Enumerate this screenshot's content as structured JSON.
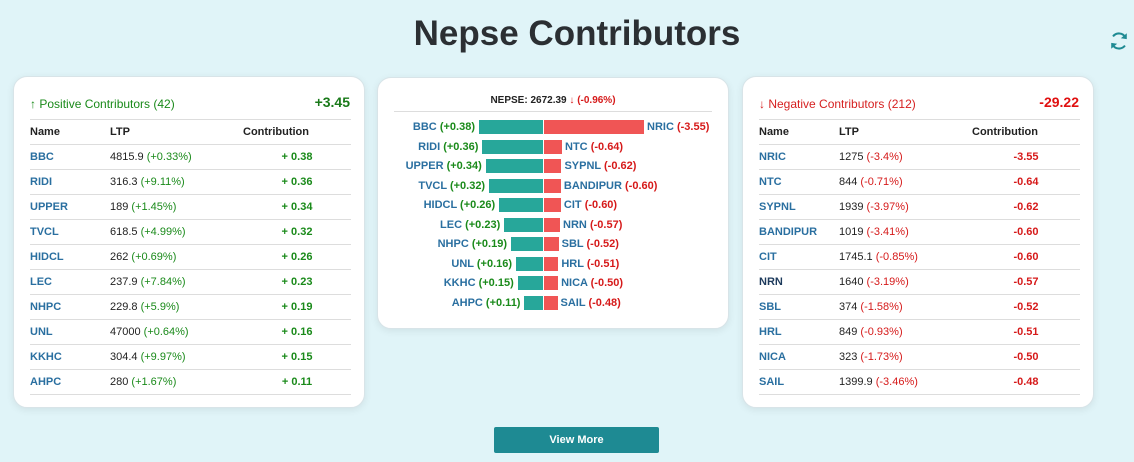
{
  "header": {
    "title": "Nepse Contributors"
  },
  "positive": {
    "arrow": "↑",
    "title": "Positive Contributors (42)",
    "total": "+3.45",
    "columns": [
      "Name",
      "LTP",
      "Contribution"
    ],
    "rows": [
      {
        "name": "BBC",
        "ltp": "4815.9",
        "chg": "(+0.33%)",
        "contrib": "+ 0.38"
      },
      {
        "name": "RIDI",
        "ltp": "316.3",
        "chg": "(+9.11%)",
        "contrib": "+ 0.36"
      },
      {
        "name": "UPPER",
        "ltp": "189",
        "chg": "(+1.45%)",
        "contrib": "+ 0.34"
      },
      {
        "name": "TVCL",
        "ltp": "618.5",
        "chg": "(+4.99%)",
        "contrib": "+ 0.32"
      },
      {
        "name": "HIDCL",
        "ltp": "262",
        "chg": "(+0.69%)",
        "contrib": "+ 0.26"
      },
      {
        "name": "LEC",
        "ltp": "237.9",
        "chg": "(+7.84%)",
        "contrib": "+ 0.23"
      },
      {
        "name": "NHPC",
        "ltp": "229.8",
        "chg": "(+5.9%)",
        "contrib": "+ 0.19"
      },
      {
        "name": "UNL",
        "ltp": "47000",
        "chg": "(+0.64%)",
        "contrib": "+ 0.16"
      },
      {
        "name": "KKHC",
        "ltp": "304.4",
        "chg": "(+9.97%)",
        "contrib": "+ 0.15"
      },
      {
        "name": "AHPC",
        "ltp": "280",
        "chg": "(+1.67%)",
        "contrib": "+ 0.11"
      }
    ]
  },
  "negative": {
    "arrow": "↓",
    "title": "Negative Contributors (212)",
    "total": "-29.22",
    "columns": [
      "Name",
      "LTP",
      "Contribution"
    ],
    "rows": [
      {
        "name": "NRIC",
        "ltp": "1275",
        "chg": "(-3.4%)",
        "contrib": "-3.55"
      },
      {
        "name": "NTC",
        "ltp": "844",
        "chg": "(-0.71%)",
        "contrib": "-0.64"
      },
      {
        "name": "SYPNL",
        "ltp": "1939",
        "chg": "(-3.97%)",
        "contrib": "-0.62"
      },
      {
        "name": "BANDIPUR",
        "ltp": "1019",
        "chg": "(-3.41%)",
        "contrib": "-0.60"
      },
      {
        "name": "CIT",
        "ltp": "1745.1",
        "chg": "(-0.85%)",
        "contrib": "-0.60"
      },
      {
        "name": "NRN",
        "ltp": "1640",
        "chg": "(-3.19%)",
        "contrib": "-0.57"
      },
      {
        "name": "SBL",
        "ltp": "374",
        "chg": "(-1.58%)",
        "contrib": "-0.52"
      },
      {
        "name": "HRL",
        "ltp": "849",
        "chg": "(-0.93%)",
        "contrib": "-0.51"
      },
      {
        "name": "NICA",
        "ltp": "323",
        "chg": "(-1.73%)",
        "contrib": "-0.50"
      },
      {
        "name": "SAIL",
        "ltp": "1399.9",
        "chg": "(-3.46%)",
        "contrib": "-0.48"
      }
    ]
  },
  "index": {
    "label": "NEPSE: 2672.39",
    "arrow": "↓",
    "change": "(-0.96%)"
  },
  "bars": {
    "positive": [
      {
        "name": "BBC",
        "value": 0.38,
        "text": "(+0.38)"
      },
      {
        "name": "RIDI",
        "value": 0.36,
        "text": "(+0.36)"
      },
      {
        "name": "UPPER",
        "value": 0.34,
        "text": "(+0.34)"
      },
      {
        "name": "TVCL",
        "value": 0.32,
        "text": "(+0.32)"
      },
      {
        "name": "HIDCL",
        "value": 0.26,
        "text": "(+0.26)"
      },
      {
        "name": "LEC",
        "value": 0.23,
        "text": "(+0.23)"
      },
      {
        "name": "NHPC",
        "value": 0.19,
        "text": "(+0.19)"
      },
      {
        "name": "UNL",
        "value": 0.16,
        "text": "(+0.16)"
      },
      {
        "name": "KKHC",
        "value": 0.15,
        "text": "(+0.15)"
      },
      {
        "name": "AHPC",
        "value": 0.11,
        "text": "(+0.11)"
      }
    ],
    "negative": [
      {
        "name": "NRIC",
        "value": 3.55,
        "text": "(-3.55)"
      },
      {
        "name": "NTC",
        "value": 0.64,
        "text": "(-0.64)"
      },
      {
        "name": "SYPNL",
        "value": 0.62,
        "text": "(-0.62)"
      },
      {
        "name": "BANDIPUR",
        "value": 0.6,
        "text": "(-0.60)"
      },
      {
        "name": "CIT",
        "value": 0.6,
        "text": "(-0.60)"
      },
      {
        "name": "NRN",
        "value": 0.57,
        "text": "(-0.57)"
      },
      {
        "name": "SBL",
        "value": 0.52,
        "text": "(-0.52)"
      },
      {
        "name": "HRL",
        "value": 0.51,
        "text": "(-0.51)"
      },
      {
        "name": "NICA",
        "value": 0.5,
        "text": "(-0.50)"
      },
      {
        "name": "SAIL",
        "value": 0.48,
        "text": "(-0.48)"
      }
    ]
  },
  "footer": {
    "view_more_label": "View More"
  },
  "colors": {
    "positive_bar": "#27a79a",
    "negative_bar": "#f05555",
    "button": "#1e8a93"
  }
}
